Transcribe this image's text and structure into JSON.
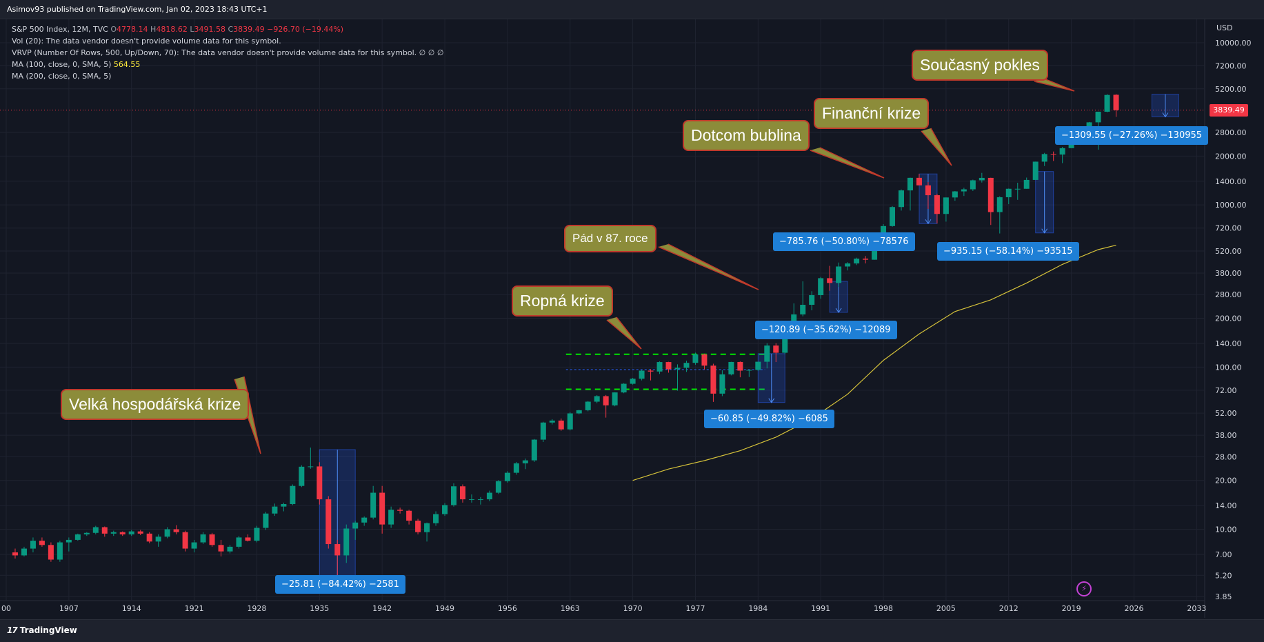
{
  "header": {
    "published": "Asimov93 published on TradingView.com, Jan 02, 2023 18:43 UTC+1"
  },
  "footer": {
    "brand": "TradingView"
  },
  "legend": {
    "symbol": "S&P 500 Index, 12M, TVC",
    "o_label": "O",
    "o": "4778.14",
    "h_label": "H",
    "h": "4818.62",
    "l_label": "L",
    "l": "3491.58",
    "c_label": "C",
    "c": "3839.49",
    "change": "−926.70 (−19.44%)",
    "vol": "Vol (20): The data vendor doesn't provide volume data for this symbol.",
    "vrvp": "VRVP (Number Of Rows, 500, Up/Down, 70): The data vendor doesn't provide volume data for this symbol.  ∅ ∅ ∅",
    "ma100_label": "MA (100, close, 0, SMA, 5)",
    "ma100_value": "564.55",
    "ma200_label": "MA (200, close, 0, SMA, 5)"
  },
  "axis": {
    "currency": "USD",
    "last_price": "3839.49",
    "y_tick_labels": [
      "10000.00",
      "7200.00",
      "5200.00",
      "2800.00",
      "2000.00",
      "1400.00",
      "1000.00",
      "720.00",
      "520.00",
      "380.00",
      "280.00",
      "200.00",
      "140.00",
      "100.00",
      "72.00",
      "52.00",
      "38.00",
      "28.00",
      "20.00",
      "14.00",
      "10.00",
      "7.00",
      "5.20",
      "3.85"
    ],
    "x_tick_labels": [
      "00",
      "1907",
      "1914",
      "1921",
      "1928",
      "1935",
      "1942",
      "1949",
      "1956",
      "1963",
      "1970",
      "1977",
      "1984",
      "1991",
      "1998",
      "2005",
      "2012",
      "2019",
      "2026",
      "2033"
    ]
  },
  "annotations": {
    "great_depression": "Velká hospodářská krize",
    "oil_crisis": "Ropná krize",
    "crash_87": "Pád v 87. roce",
    "dotcom": "Dotcom bublina",
    "financial": "Finanční krize",
    "current": "Současný pokles"
  },
  "measure_labels": {
    "m1929": "−25.81 (−84.42%) −2581",
    "m1973": "−60.85 (−49.82%) −6085",
    "m1987": "−120.89 (−35.62%) −12089",
    "m2000": "−785.76 (−50.80%) −78576",
    "m2008": "−935.15 (−58.14%) −93515",
    "m2022": "−1309.55 (−27.26%) −130955"
  },
  "colors": {
    "up": "#089981",
    "down": "#f23645",
    "ma": "#d4c13a",
    "measure": "#2962ff",
    "level": "#00e600"
  },
  "chart_data": {
    "type": "candlestick",
    "symbol": "S&P 500 Index",
    "interval": "12M",
    "scale": "log",
    "ylim": [
      3.85,
      10000
    ],
    "xlim": [
      1900,
      2035
    ],
    "candles": [
      {
        "x": 1901,
        "o": 7.2,
        "h": 7.6,
        "l": 6.6,
        "c": 6.9
      },
      {
        "x": 1902,
        "o": 6.9,
        "h": 7.8,
        "l": 6.8,
        "c": 7.6
      },
      {
        "x": 1903,
        "o": 7.6,
        "h": 8.9,
        "l": 7.2,
        "c": 8.5
      },
      {
        "x": 1904,
        "o": 8.5,
        "h": 8.9,
        "l": 7.8,
        "c": 8.0
      },
      {
        "x": 1905,
        "o": 8.0,
        "h": 8.3,
        "l": 6.3,
        "c": 6.5
      },
      {
        "x": 1906,
        "o": 6.5,
        "h": 8.5,
        "l": 6.3,
        "c": 8.3
      },
      {
        "x": 1907,
        "o": 8.3,
        "h": 8.9,
        "l": 7.3,
        "c": 8.6
      },
      {
        "x": 1908,
        "o": 8.6,
        "h": 9.4,
        "l": 8.5,
        "c": 9.3
      },
      {
        "x": 1909,
        "o": 9.3,
        "h": 9.6,
        "l": 9.1,
        "c": 9.5
      },
      {
        "x": 1910,
        "o": 9.5,
        "h": 10.5,
        "l": 9.3,
        "c": 10.3
      },
      {
        "x": 1911,
        "o": 10.3,
        "h": 10.4,
        "l": 9.0,
        "c": 9.4
      },
      {
        "x": 1912,
        "o": 9.4,
        "h": 9.8,
        "l": 9.1,
        "c": 9.6
      },
      {
        "x": 1913,
        "o": 9.6,
        "h": 9.7,
        "l": 9.1,
        "c": 9.3
      },
      {
        "x": 1914,
        "o": 9.3,
        "h": 9.9,
        "l": 9.1,
        "c": 9.7
      },
      {
        "x": 1915,
        "o": 9.7,
        "h": 9.9,
        "l": 9.2,
        "c": 9.4
      },
      {
        "x": 1916,
        "o": 9.4,
        "h": 9.6,
        "l": 8.2,
        "c": 8.4
      },
      {
        "x": 1917,
        "o": 8.4,
        "h": 9.3,
        "l": 7.8,
        "c": 9.0
      },
      {
        "x": 1918,
        "o": 9.0,
        "h": 10.3,
        "l": 8.8,
        "c": 10.0
      },
      {
        "x": 1919,
        "o": 10.0,
        "h": 10.6,
        "l": 9.3,
        "c": 9.6
      },
      {
        "x": 1920,
        "o": 9.6,
        "h": 9.8,
        "l": 7.3,
        "c": 7.6
      },
      {
        "x": 1921,
        "o": 7.6,
        "h": 8.6,
        "l": 7.2,
        "c": 8.3
      },
      {
        "x": 1922,
        "o": 8.3,
        "h": 9.6,
        "l": 8.1,
        "c": 9.3
      },
      {
        "x": 1923,
        "o": 9.3,
        "h": 9.5,
        "l": 7.8,
        "c": 8.0
      },
      {
        "x": 1924,
        "o": 8.0,
        "h": 8.6,
        "l": 6.8,
        "c": 7.3
      },
      {
        "x": 1925,
        "o": 7.3,
        "h": 8.0,
        "l": 7.1,
        "c": 7.8
      },
      {
        "x": 1926,
        "o": 7.8,
        "h": 9.1,
        "l": 7.6,
        "c": 8.9
      },
      {
        "x": 1927,
        "o": 8.9,
        "h": 9.3,
        "l": 8.4,
        "c": 8.5
      },
      {
        "x": 1928,
        "o": 8.5,
        "h": 10.5,
        "l": 8.3,
        "c": 10.2
      },
      {
        "x": 1929,
        "o": 10.2,
        "h": 12.8,
        "l": 9.9,
        "c": 12.5
      },
      {
        "x": 1930,
        "o": 12.5,
        "h": 14.4,
        "l": 12.1,
        "c": 13.8
      },
      {
        "x": 1931,
        "o": 13.8,
        "h": 14.6,
        "l": 12.9,
        "c": 14.3
      },
      {
        "x": 1932,
        "o": 14.3,
        "h": 18.9,
        "l": 14.1,
        "c": 18.5
      },
      {
        "x": 1933,
        "o": 18.5,
        "h": 24.8,
        "l": 18.2,
        "c": 24.3
      },
      {
        "x": 1934,
        "o": 24.3,
        "h": 31.9,
        "l": 23.6,
        "c": 24.4
      },
      {
        "x": 1935,
        "o": 24.4,
        "h": 25.9,
        "l": 14.2,
        "c": 15.3
      },
      {
        "x": 1936,
        "o": 15.3,
        "h": 16.0,
        "l": 7.6,
        "c": 8.1
      },
      {
        "x": 1937,
        "o": 8.1,
        "h": 8.6,
        "l": 4.9,
        "c": 6.9
      },
      {
        "x": 1938,
        "o": 6.9,
        "h": 10.7,
        "l": 6.2,
        "c": 10.1
      },
      {
        "x": 1939,
        "o": 10.1,
        "h": 11.3,
        "l": 8.6,
        "c": 11.0
      },
      {
        "x": 1940,
        "o": 11.0,
        "h": 12.0,
        "l": 10.5,
        "c": 11.8
      },
      {
        "x": 1941,
        "o": 11.8,
        "h": 18.5,
        "l": 11.5,
        "c": 16.8
      },
      {
        "x": 1942,
        "o": 16.8,
        "h": 18.5,
        "l": 9.4,
        "c": 10.7
      },
      {
        "x": 1943,
        "o": 10.7,
        "h": 13.8,
        "l": 10.2,
        "c": 13.2
      },
      {
        "x": 1944,
        "o": 13.2,
        "h": 13.6,
        "l": 12.5,
        "c": 13.0
      },
      {
        "x": 1945,
        "o": 13.0,
        "h": 13.2,
        "l": 10.7,
        "c": 11.3
      },
      {
        "x": 1946,
        "o": 11.3,
        "h": 11.6,
        "l": 9.3,
        "c": 9.6
      },
      {
        "x": 1947,
        "o": 9.6,
        "h": 11.0,
        "l": 8.4,
        "c": 10.9
      },
      {
        "x": 1948,
        "o": 10.9,
        "h": 12.9,
        "l": 10.5,
        "c": 12.4
      },
      {
        "x": 1949,
        "o": 12.4,
        "h": 14.5,
        "l": 12.1,
        "c": 14.1
      },
      {
        "x": 1950,
        "o": 14.1,
        "h": 19.2,
        "l": 13.8,
        "c": 18.4
      },
      {
        "x": 1951,
        "o": 18.4,
        "h": 18.9,
        "l": 14.6,
        "c": 15.3
      },
      {
        "x": 1952,
        "o": 15.3,
        "h": 16.4,
        "l": 14.6,
        "c": 15.3
      },
      {
        "x": 1953,
        "o": 15.3,
        "h": 15.8,
        "l": 14.2,
        "c": 15.3
      },
      {
        "x": 1954,
        "o": 15.3,
        "h": 17.3,
        "l": 14.9,
        "c": 16.8
      },
      {
        "x": 1955,
        "o": 16.8,
        "h": 20.1,
        "l": 16.5,
        "c": 19.8
      },
      {
        "x": 1956,
        "o": 19.8,
        "h": 22.8,
        "l": 19.4,
        "c": 22.3
      },
      {
        "x": 1957,
        "o": 22.3,
        "h": 26.0,
        "l": 21.7,
        "c": 25.5
      },
      {
        "x": 1958,
        "o": 25.5,
        "h": 27.3,
        "l": 23.5,
        "c": 26.6
      },
      {
        "x": 1959,
        "o": 26.6,
        "h": 36.0,
        "l": 26.0,
        "c": 35.7
      },
      {
        "x": 1960,
        "o": 35.7,
        "h": 46.0,
        "l": 34.5,
        "c": 45.5
      },
      {
        "x": 1961,
        "o": 45.5,
        "h": 47.7,
        "l": 44.3,
        "c": 46.8
      },
      {
        "x": 1962,
        "o": 46.8,
        "h": 48.2,
        "l": 40.5,
        "c": 41.3
      },
      {
        "x": 1963,
        "o": 41.3,
        "h": 52.7,
        "l": 40.7,
        "c": 51.8
      },
      {
        "x": 1964,
        "o": 51.8,
        "h": 54.5,
        "l": 51.1,
        "c": 54.2
      },
      {
        "x": 1965,
        "o": 54.2,
        "h": 61.7,
        "l": 53.4,
        "c": 61.2
      },
      {
        "x": 1966,
        "o": 61.2,
        "h": 67.1,
        "l": 59.9,
        "c": 66.2
      },
      {
        "x": 1967,
        "o": 66.2,
        "h": 67.3,
        "l": 48.8,
        "c": 58.1
      },
      {
        "x": 1968,
        "o": 58.1,
        "h": 70.0,
        "l": 57.3,
        "c": 69.8
      },
      {
        "x": 1969,
        "o": 69.8,
        "h": 79.6,
        "l": 69.0,
        "c": 78.9
      },
      {
        "x": 1970,
        "o": 78.9,
        "h": 85.8,
        "l": 78.0,
        "c": 84.8
      },
      {
        "x": 1971,
        "o": 84.8,
        "h": 96.0,
        "l": 82.8,
        "c": 95.1
      },
      {
        "x": 1972,
        "o": 95.1,
        "h": 97.2,
        "l": 82.8,
        "c": 93.9
      },
      {
        "x": 1973,
        "o": 93.9,
        "h": 108.4,
        "l": 90.7,
        "c": 107.4
      },
      {
        "x": 1974,
        "o": 107.4,
        "h": 107.8,
        "l": 92.4,
        "c": 97.0
      },
      {
        "x": 1975,
        "o": 97.0,
        "h": 104.0,
        "l": 71.6,
        "c": 99.0
      },
      {
        "x": 1976,
        "o": 99.0,
        "h": 109.6,
        "l": 93.4,
        "c": 106.2
      },
      {
        "x": 1977,
        "o": 106.2,
        "h": 122.8,
        "l": 103.4,
        "c": 119.7
      },
      {
        "x": 1978,
        "o": 119.7,
        "h": 121.0,
        "l": 96.8,
        "c": 102.1
      },
      {
        "x": 1979,
        "o": 102.1,
        "h": 104.9,
        "l": 61.0,
        "c": 68.6
      },
      {
        "x": 1980,
        "o": 68.6,
        "h": 95.6,
        "l": 66.2,
        "c": 90.2
      },
      {
        "x": 1981,
        "o": 90.2,
        "h": 107.8,
        "l": 88.9,
        "c": 107.5
      },
      {
        "x": 1982,
        "o": 107.5,
        "h": 108.4,
        "l": 86.5,
        "c": 95.1
      },
      {
        "x": 1983,
        "o": 95.1,
        "h": 96.7,
        "l": 86.9,
        "c": 96.1
      },
      {
        "x": 1984,
        "o": 96.1,
        "h": 107.8,
        "l": 94.8,
        "c": 107.9
      },
      {
        "x": 1985,
        "o": 107.9,
        "h": 140.5,
        "l": 98.2,
        "c": 135.8
      },
      {
        "x": 1986,
        "o": 135.8,
        "h": 140.5,
        "l": 107.4,
        "c": 122.6
      },
      {
        "x": 1987,
        "o": 122.6,
        "h": 167.7,
        "l": 120.2,
        "c": 166.4
      },
      {
        "x": 1988,
        "o": 166.4,
        "h": 247.1,
        "l": 154.1,
        "c": 211.3
      },
      {
        "x": 1989,
        "o": 211.3,
        "h": 337.9,
        "l": 205.5,
        "c": 242.2
      },
      {
        "x": 1990,
        "o": 242.2,
        "h": 293.7,
        "l": 223.9,
        "c": 277.7
      },
      {
        "x": 1991,
        "o": 277.7,
        "h": 359.8,
        "l": 264.0,
        "c": 353.4
      },
      {
        "x": 1992,
        "o": 353.4,
        "h": 420.8,
        "l": 295.5,
        "c": 330.2
      },
      {
        "x": 1993,
        "o": 330.2,
        "h": 441.3,
        "l": 311.9,
        "c": 417.1
      },
      {
        "x": 1994,
        "o": 417.1,
        "h": 443.5,
        "l": 394.5,
        "c": 435.7
      },
      {
        "x": 1995,
        "o": 435.7,
        "h": 472.9,
        "l": 425.8,
        "c": 466.5
      },
      {
        "x": 1996,
        "o": 466.5,
        "h": 484.0,
        "l": 435.9,
        "c": 459.3
      },
      {
        "x": 1997,
        "o": 459.3,
        "h": 621.7,
        "l": 459.0,
        "c": 615.9
      },
      {
        "x": 1998,
        "o": 615.9,
        "h": 761.0,
        "l": 598.5,
        "c": 740.7
      },
      {
        "x": 1999,
        "o": 740.7,
        "h": 983.8,
        "l": 733.5,
        "c": 970.4
      },
      {
        "x": 2000,
        "o": 970.4,
        "h": 1244.9,
        "l": 923.3,
        "c": 1229.2
      },
      {
        "x": 2001,
        "o": 1229.2,
        "h": 1473.1,
        "l": 923.3,
        "c": 1469.3
      },
      {
        "x": 2002,
        "o": 1469.3,
        "h": 1553.1,
        "l": 1339.4,
        "c": 1320.3
      },
      {
        "x": 2003,
        "o": 1320.3,
        "h": 1383.4,
        "l": 944.8,
        "c": 1148.1
      },
      {
        "x": 2004,
        "o": 1148.1,
        "h": 1172.6,
        "l": 768.6,
        "c": 879.8
      },
      {
        "x": 2005,
        "o": 879.8,
        "h": 1112.0,
        "l": 788.9,
        "c": 1111.9
      },
      {
        "x": 2006,
        "o": 1111.9,
        "h": 1217.9,
        "l": 1060.7,
        "c": 1211.9
      },
      {
        "x": 2007,
        "o": 1211.9,
        "h": 1275.8,
        "l": 1136.2,
        "c": 1248.3
      },
      {
        "x": 2008,
        "o": 1248.3,
        "h": 1431.8,
        "l": 1219.3,
        "c": 1418.3
      },
      {
        "x": 2009,
        "o": 1418.3,
        "h": 1576.1,
        "l": 1374.1,
        "c": 1468.4
      },
      {
        "x": 2010,
        "o": 1468.4,
        "h": 1471.8,
        "l": 752.4,
        "c": 903.3
      },
      {
        "x": 2011,
        "o": 903.3,
        "h": 1130.4,
        "l": 666.8,
        "c": 1115.1
      },
      {
        "x": 2012,
        "o": 1115.1,
        "h": 1262.6,
        "l": 1010.9,
        "c": 1257.6
      },
      {
        "x": 2013,
        "o": 1257.6,
        "h": 1370.6,
        "l": 1074.8,
        "c": 1257.6
      },
      {
        "x": 2014,
        "o": 1257.6,
        "h": 1474.5,
        "l": 1258.1,
        "c": 1426.2
      },
      {
        "x": 2015,
        "o": 1426.2,
        "h": 1849.4,
        "l": 1426.2,
        "c": 1848.4
      },
      {
        "x": 2016,
        "o": 1848.4,
        "h": 2093.6,
        "l": 1737.9,
        "c": 2058.9
      },
      {
        "x": 2017,
        "o": 2058.9,
        "h": 2134.7,
        "l": 1867.0,
        "c": 2043.9
      },
      {
        "x": 2018,
        "o": 2043.9,
        "h": 2277.5,
        "l": 1810.1,
        "c": 2238.8
      },
      {
        "x": 2019,
        "o": 2238.8,
        "h": 2694.0,
        "l": 2245.1,
        "c": 2673.6
      },
      {
        "x": 2020,
        "o": 2673.6,
        "h": 2940.9,
        "l": 2346.6,
        "c": 2506.9
      },
      {
        "x": 2021,
        "o": 2506.9,
        "h": 3247.9,
        "l": 2443.9,
        "c": 3230.8
      },
      {
        "x": 2022,
        "o": 3230.8,
        "h": 3760.2,
        "l": 2191.9,
        "c": 3756.1
      },
      {
        "x": 2023,
        "o": 3756.1,
        "h": 4818.6,
        "l": 3723.3,
        "c": 4766.2
      },
      {
        "x": 2024,
        "o": 4778.1,
        "h": 4818.6,
        "l": 3491.6,
        "c": 3839.5
      }
    ],
    "ma100": [
      {
        "x": 1970,
        "y": 20.0
      },
      {
        "x": 1974,
        "y": 23.5
      },
      {
        "x": 1978,
        "y": 26.5
      },
      {
        "x": 1982,
        "y": 30.5
      },
      {
        "x": 1986,
        "y": 37.0
      },
      {
        "x": 1990,
        "y": 48.0
      },
      {
        "x": 1994,
        "y": 68.0
      },
      {
        "x": 1998,
        "y": 110.0
      },
      {
        "x": 2002,
        "y": 160.0
      },
      {
        "x": 2006,
        "y": 220.0
      },
      {
        "x": 2010,
        "y": 260.0
      },
      {
        "x": 2014,
        "y": 330.0
      },
      {
        "x": 2018,
        "y": 430.0
      },
      {
        "x": 2022,
        "y": 530.0
      },
      {
        "x": 2024,
        "y": 564.55
      }
    ],
    "levels": [
      {
        "y": 120,
        "color": "#00e600",
        "style": "dashed",
        "x_from": 1961,
        "x_to": 1984
      },
      {
        "y": 96.5,
        "color": "#2962ff",
        "style": "dashed",
        "x_from": 1961,
        "x_to": 1984
      },
      {
        "y": 73,
        "color": "#00e600",
        "style": "dashed",
        "x_from": 1961,
        "x_to": 1984
      }
    ],
    "measures": [
      {
        "x_from": 1935,
        "x_to": 1939,
        "y_top": 31.0,
        "y_bottom": 4.9,
        "label_key": "m1929"
      },
      {
        "x_from": 1984,
        "x_to": 1987,
        "y_top": 121.0,
        "y_bottom": 60.5,
        "label_key": "m1973"
      },
      {
        "x_from": 1992,
        "x_to": 1994,
        "y_top": 338.0,
        "y_bottom": 217.5,
        "label_key": "m1987"
      },
      {
        "x_from": 2002,
        "x_to": 2004,
        "y_top": 1553.0,
        "y_bottom": 767.0,
        "label_key": "m2000"
      },
      {
        "x_from": 2015,
        "x_to": 2017,
        "y_top": 1608.0,
        "y_bottom": 672.0,
        "label_key": "m2008"
      },
      {
        "x_from": 2028,
        "x_to": 2031,
        "y_top": 4818.0,
        "y_bottom": 3491.0,
        "label_key": "m2022"
      }
    ]
  }
}
